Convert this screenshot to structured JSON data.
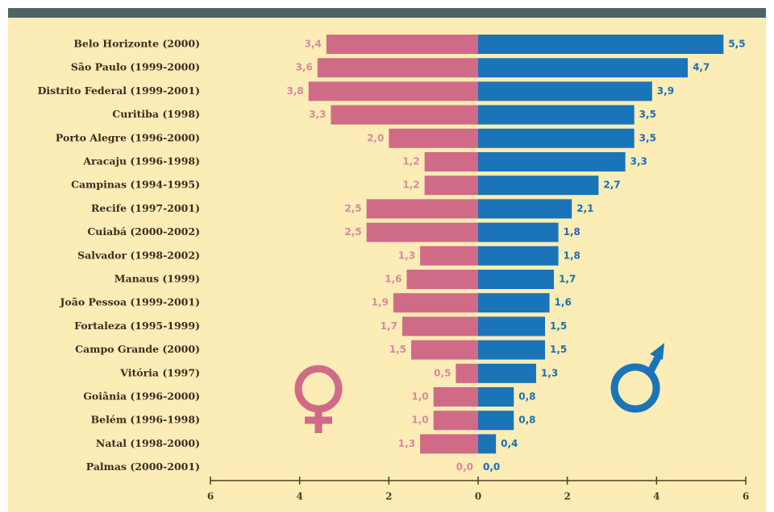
{
  "chart_data": {
    "type": "bar",
    "categories": [
      "Belo Horizonte (2000)",
      "São Paulo (1999-2000)",
      "Distrito Federal (1999-2001)",
      "Curitiba (1998)",
      "Porto Alegre (1996-2000)",
      "Aracaju (1996-1998)",
      "Campinas (1994-1995)",
      "Recife (1997-2001)",
      "Cuiabá (2000-2002)",
      "Salvador (1998-2002)",
      "Manaus (1999)",
      "João Pessoa (1999-2001)",
      "Fortaleza (1995-1999)",
      "Campo Grande (2000)",
      "Vitória (1997)",
      "Goiânia (1996-2000)",
      "Belém (1996-1998)",
      "Natal (1998-2000)",
      "Palmas (2000-2001)"
    ],
    "series": [
      {
        "color": "#cf6b87",
        "values": [
          -3.4,
          -3.6,
          -3.8,
          -3.3,
          -2.0,
          -1.2,
          -1.2,
          -2.5,
          -2.5,
          -1.3,
          -1.6,
          -1.9,
          -1.7,
          -1.5,
          -0.5,
          -1.0,
          -1.0,
          -1.3,
          0.0
        ],
        "value_labels": [
          "3,4",
          "3,6",
          "3,8",
          "3,3",
          "2,0",
          "1,2",
          "1,2",
          "2,5",
          "2,5",
          "1,3",
          "1,6",
          "1,9",
          "1,7",
          "1,5",
          "0,5",
          "1,0",
          "1,0",
          "1,3",
          "0,0"
        ]
      },
      {
        "color": "#1a74b8",
        "values": [
          5.5,
          4.7,
          3.9,
          3.5,
          3.5,
          3.3,
          2.7,
          2.1,
          1.8,
          1.8,
          1.7,
          1.6,
          1.5,
          1.5,
          1.3,
          0.8,
          0.8,
          0.4,
          0.0
        ],
        "value_labels": [
          "5,5",
          "4,7",
          "3,9",
          "3,5",
          "3,5",
          "3,3",
          "2,7",
          "2,1",
          "1,8",
          "1,8",
          "1,7",
          "1,6",
          "1,5",
          "1,5",
          "1,3",
          "0,8",
          "0,8",
          "0,4",
          "0,0"
        ]
      }
    ],
    "xlim": [
      -6,
      6
    ],
    "xticks": [
      {
        "value": -6,
        "label": "6"
      },
      {
        "value": -4,
        "label": "4"
      },
      {
        "value": -2,
        "label": "2"
      },
      0,
      2,
      4,
      6
    ]
  }
}
